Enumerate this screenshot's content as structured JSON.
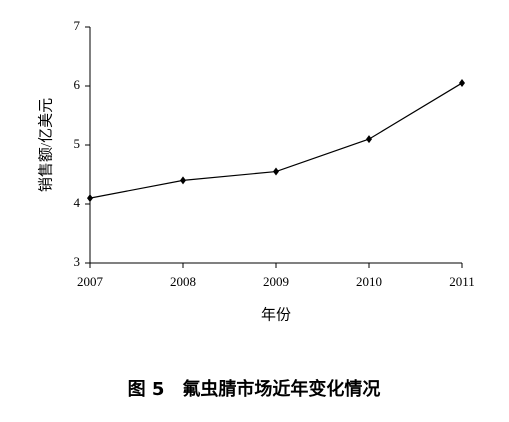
{
  "chart_data": {
    "type": "line",
    "caption": "图 5　氟虫腈市场近年变化情况",
    "x_label": "年份",
    "y_label": "销售额/亿美元",
    "x": [
      2007,
      2008,
      2009,
      2010,
      2011
    ],
    "series": [
      {
        "color": "#000000",
        "values": [
          4.1,
          4.4,
          4.55,
          5.1,
          6.05
        ]
      }
    ],
    "xlim": [
      2007,
      2011
    ],
    "xticks": [
      2007,
      2008,
      2009,
      2010,
      2011
    ],
    "ylim": [
      3,
      7
    ],
    "yticks": [
      3,
      4,
      5,
      6,
      7
    ],
    "grid": false
  }
}
